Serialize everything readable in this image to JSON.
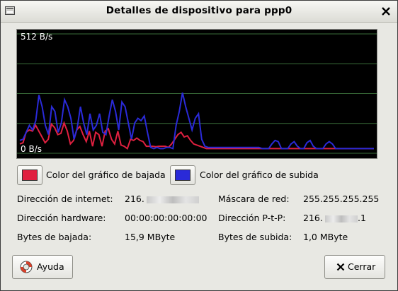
{
  "window": {
    "title": "Detalles de dispositivo para ppp0"
  },
  "graph": {
    "max_label": "512 B/s",
    "min_label": "0 B/s",
    "download_color": "#e02040",
    "upload_color": "#2a2ad8",
    "grid_color": "#3a6e3a",
    "background": "#000000"
  },
  "chart_data": {
    "type": "line",
    "ylim": [
      0,
      512
    ],
    "series": [
      {
        "values": [
          40,
          45,
          90,
          100,
          95,
          120,
          95,
          70,
          45,
          60,
          125,
          110,
          80,
          85,
          130,
          95,
          40,
          55,
          100,
          115,
          80,
          50,
          95,
          30,
          90,
          80,
          30,
          95,
          105,
          60,
          40,
          95,
          35,
          30,
          20,
          60,
          55,
          65,
          55,
          50,
          30,
          30,
          30,
          28,
          30,
          30,
          30,
          25,
          40,
          60,
          80,
          90,
          70,
          75,
          55,
          40,
          35,
          30,
          25,
          20,
          20,
          20,
          20,
          20,
          20,
          20,
          20,
          20,
          20,
          20,
          20,
          20,
          20,
          20,
          20,
          20,
          20,
          20,
          20,
          20,
          20,
          20,
          20,
          20,
          20,
          20,
          20,
          20,
          20,
          20,
          20,
          20,
          20,
          20,
          20,
          20,
          20,
          20,
          20,
          20,
          20,
          20,
          20,
          20,
          20,
          20,
          20,
          20,
          20,
          20,
          20,
          20,
          20
        ]
      },
      {
        "values": [
          55,
          60,
          90,
          120,
          100,
          140,
          250,
          200,
          120,
          80,
          200,
          180,
          90,
          130,
          230,
          200,
          150,
          60,
          110,
          200,
          130,
          80,
          170,
          100,
          120,
          170,
          90,
          80,
          160,
          230,
          180,
          100,
          220,
          200,
          130,
          60,
          130,
          150,
          140,
          160,
          90,
          25,
          20,
          25,
          20,
          20,
          25,
          25,
          20,
          120,
          180,
          260,
          200,
          150,
          100,
          150,
          170,
          60,
          30,
          25,
          25,
          25,
          25,
          25,
          25,
          25,
          25,
          25,
          25,
          25,
          25,
          25,
          25,
          25,
          25,
          25,
          20,
          20,
          20,
          40,
          55,
          50,
          20,
          20,
          20,
          40,
          50,
          30,
          20,
          20,
          45,
          55,
          30,
          20,
          20,
          20,
          40,
          50,
          40,
          20,
          20,
          20,
          20,
          20,
          20,
          20,
          20,
          20,
          20,
          20,
          20,
          20
        ]
      }
    ]
  },
  "legend": {
    "download_label": "Color del gráfico de bajada",
    "upload_label": "Color del gráfico de subida"
  },
  "details": {
    "ip_label": "Dirección de internet:",
    "ip_value": "216.",
    "mask_label": "Máscara de red:",
    "mask_value": "255.255.255.255",
    "hw_label": "Dirección hardware:",
    "hw_value": "00:00:00:00:00:00",
    "ptp_label": "Dirección P-t-P:",
    "ptp_value": "216.",
    "ptp_suffix": ".1",
    "rx_label": "Bytes de bajada:",
    "rx_value": "15,9 MByte",
    "tx_label": "Bytes de subida:",
    "tx_value": "1,0 MByte"
  },
  "buttons": {
    "help_label": "Ayuda",
    "close_label": "Cerrar"
  }
}
